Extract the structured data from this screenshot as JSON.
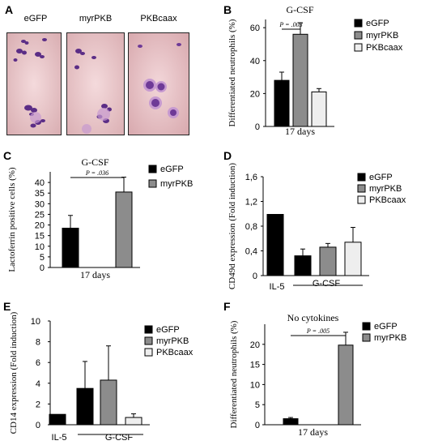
{
  "panels": {
    "A": {
      "letter": "A",
      "images": [
        {
          "label": "eGFP"
        },
        {
          "label": "myrPKB"
        },
        {
          "label": "PKBcaax"
        }
      ]
    },
    "B": {
      "letter": "B"
    },
    "C": {
      "letter": "C"
    },
    "D": {
      "letter": "D"
    },
    "E": {
      "letter": "E"
    },
    "F": {
      "letter": "F"
    }
  },
  "colors": {
    "eGFP": "#000000",
    "myrPKB": "#8c8c8c",
    "PKBcaax": "#eeeeee",
    "stain_dark": "#5b2d86",
    "stain_light": "#c79ad0",
    "slide_bg": "#efd3d5"
  },
  "chart_data": [
    {
      "id": "B",
      "type": "bar",
      "title": "G-CSF",
      "ylabel": "Differentiated neutrophils (%)",
      "xlabel": "17 days",
      "ylim": [
        0,
        65
      ],
      "yticks": [
        "0",
        "20",
        "40",
        "60"
      ],
      "ytick_values": [
        0,
        20,
        40,
        60
      ],
      "categories": [
        "eGFP",
        "myrPKB",
        "PKBcaax"
      ],
      "values": [
        28,
        56,
        21
      ],
      "errors": [
        5,
        7,
        2
      ],
      "legend": [
        "eGFP",
        "myrPKB",
        "PKBcaax"
      ],
      "legend_position": "right",
      "annotation": "P = .003"
    },
    {
      "id": "C",
      "type": "bar",
      "title": "G-CSF",
      "ylabel": "Lactoferrin positive cells (%)",
      "xlabel": "17 days",
      "ylim": [
        0,
        45
      ],
      "yticks": [
        "0",
        "5",
        "10",
        "15",
        "20",
        "25",
        "30",
        "35",
        "40"
      ],
      "ytick_values": [
        0,
        5,
        10,
        15,
        20,
        25,
        30,
        35,
        40
      ],
      "categories": [
        "eGFP",
        "myrPKB"
      ],
      "values": [
        18.5,
        35.5
      ],
      "errors": [
        6,
        7
      ],
      "legend": [
        "eGFP",
        "myrPKB"
      ],
      "legend_position": "right",
      "annotation": "P = .036"
    },
    {
      "id": "D",
      "type": "bar",
      "ylabel": "CD49d expression (Fold induction)",
      "ylim": [
        0,
        1.6
      ],
      "yticks": [
        "0",
        "0,4",
        "0,8",
        "1,2",
        "1,6"
      ],
      "ytick_values": [
        0,
        0.4,
        0.8,
        1.2,
        1.6
      ],
      "bars": [
        {
          "series": "eGFP",
          "value": 0.99,
          "error": 0
        },
        {
          "series": "eGFP",
          "value": 0.32,
          "error": 0.11
        },
        {
          "series": "myrPKB",
          "value": 0.46,
          "error": 0.06
        },
        {
          "series": "PKBcaax",
          "value": 0.54,
          "error": 0.24
        }
      ],
      "group_labels": [
        "IL-5",
        "G-CSF"
      ],
      "legend": [
        "eGFP",
        "myrPKB",
        "PKBcaax"
      ],
      "legend_position": "right"
    },
    {
      "id": "E",
      "type": "bar",
      "ylabel": "CD14 expression (Fold induction)",
      "ylim": [
        0,
        10
      ],
      "yticks": [
        "0",
        "2",
        "4",
        "6",
        "8",
        "10"
      ],
      "ytick_values": [
        0,
        2,
        4,
        6,
        8,
        10
      ],
      "bars": [
        {
          "series": "eGFP",
          "value": 1.0,
          "error": 0
        },
        {
          "series": "eGFP",
          "value": 3.5,
          "error": 2.6
        },
        {
          "series": "myrPKB",
          "value": 4.3,
          "error": 3.3
        },
        {
          "series": "PKBcaax",
          "value": 0.7,
          "error": 0.35
        }
      ],
      "group_labels": [
        "IL-5",
        "G-CSF"
      ],
      "legend": [
        "eGFP",
        "myrPKB",
        "PKBcaax"
      ],
      "legend_position": "right"
    },
    {
      "id": "F",
      "type": "bar",
      "title": "No cytokines",
      "ylabel": "Differentiated neutrophils (%)",
      "xlabel": "17 days",
      "ylim": [
        0,
        25
      ],
      "yticks": [
        "0",
        "5",
        "10",
        "15",
        "20"
      ],
      "ytick_values": [
        0,
        5,
        10,
        15,
        20
      ],
      "categories": [
        "eGFP",
        "myrPKB"
      ],
      "values": [
        1.5,
        19.8
      ],
      "errors": [
        0.3,
        3.2
      ],
      "legend": [
        "eGFP",
        "myrPKB"
      ],
      "legend_position": "right",
      "annotation": "P = .005"
    }
  ]
}
